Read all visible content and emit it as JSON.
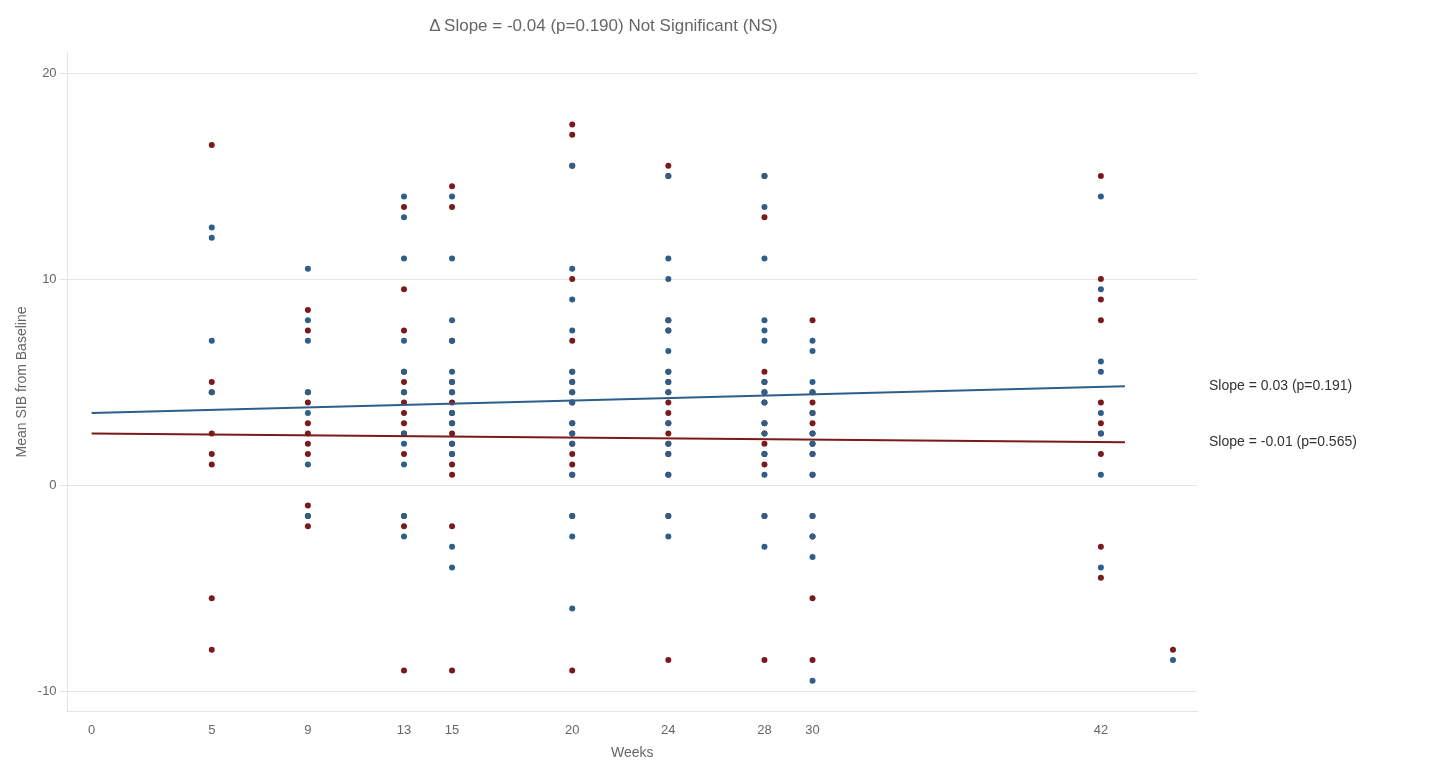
{
  "chart_data": {
    "type": "scatter",
    "title": "Δ Slope = -0.04 (p=0.190) Not Significant (NS)",
    "x_label": "Weeks",
    "y_label": "Mean SIB from Baseline",
    "xlim": [
      -1,
      46
    ],
    "ylim": [
      -11,
      21
    ],
    "xticks": [
      0,
      5,
      9,
      13,
      15,
      20,
      24,
      28,
      30,
      42
    ],
    "yticks": [
      -10,
      0,
      10,
      20
    ],
    "grid": "y",
    "series": [
      {
        "type": "scatter",
        "color": "#2d5f8a",
        "x": [
          5,
          5,
          5,
          5,
          9,
          9,
          9,
          9,
          9,
          9,
          9,
          13,
          13,
          13,
          13,
          13,
          13,
          13,
          13,
          13,
          13,
          13,
          15,
          15,
          15,
          15,
          15,
          15,
          15,
          15,
          15,
          15,
          15,
          15,
          15,
          20,
          20,
          20,
          20,
          20,
          20,
          20,
          20,
          20,
          20,
          20,
          20,
          20,
          20,
          20,
          24,
          24,
          24,
          24,
          24,
          24,
          24,
          24,
          24,
          24,
          24,
          24,
          24,
          24,
          24,
          28,
          28,
          28,
          28,
          28,
          28,
          28,
          28,
          28,
          28,
          28,
          28,
          28,
          28,
          28,
          30,
          30,
          30,
          30,
          30,
          30,
          30,
          30,
          30,
          30,
          30,
          30,
          30,
          42,
          42,
          42,
          42,
          42,
          42,
          42,
          42,
          45
        ],
        "values": [
          4.5,
          7.0,
          12.0,
          12.5,
          10.5,
          8.0,
          7.0,
          4.5,
          3.5,
          1.0,
          -1.5,
          14.0,
          13.0,
          11.0,
          7.0,
          5.5,
          4.5,
          2.5,
          2.0,
          1.0,
          -1.5,
          -2.5,
          14.0,
          11.0,
          8.0,
          7.0,
          5.5,
          5.0,
          4.5,
          3.5,
          3.0,
          2.0,
          1.5,
          -3.0,
          -4.0,
          15.5,
          10.5,
          9.0,
          7.5,
          5.5,
          5.0,
          4.5,
          4.0,
          3.0,
          2.5,
          2.0,
          0.5,
          -1.5,
          -2.5,
          -6.0,
          15.0,
          11.0,
          10.0,
          8.0,
          7.5,
          6.5,
          5.5,
          5.0,
          4.5,
          3.0,
          2.0,
          1.5,
          0.5,
          -1.5,
          -2.5,
          15.0,
          13.5,
          11.0,
          8.0,
          7.5,
          7.0,
          5.0,
          4.5,
          4.0,
          3.0,
          2.5,
          1.5,
          0.5,
          -1.5,
          -3.0,
          7.0,
          6.5,
          5.0,
          4.5,
          3.5,
          2.5,
          2.0,
          1.5,
          0.5,
          -1.5,
          -2.5,
          -3.5,
          -9.5,
          14.0,
          9.5,
          6.0,
          5.5,
          3.5,
          2.5,
          0.5,
          -4.0,
          -8.5
        ]
      },
      {
        "type": "scatter",
        "color": "#7a1a1a",
        "x": [
          5,
          5,
          5,
          5,
          5,
          5,
          5,
          5,
          9,
          9,
          9,
          9,
          9,
          9,
          9,
          9,
          9,
          9,
          9,
          13,
          13,
          13,
          13,
          13,
          13,
          13,
          13,
          13,
          13,
          13,
          13,
          13,
          13,
          15,
          15,
          15,
          15,
          15,
          15,
          15,
          15,
          15,
          15,
          15,
          15,
          15,
          15,
          15,
          20,
          20,
          20,
          20,
          20,
          20,
          20,
          20,
          20,
          20,
          20,
          20,
          20,
          20,
          20,
          20,
          20,
          24,
          24,
          24,
          24,
          24,
          24,
          24,
          24,
          24,
          24,
          24,
          24,
          24,
          24,
          24,
          24,
          28,
          28,
          28,
          28,
          28,
          28,
          28,
          28,
          28,
          28,
          28,
          28,
          28,
          30,
          30,
          30,
          30,
          30,
          30,
          30,
          30,
          30,
          30,
          30,
          30,
          30,
          42,
          42,
          42,
          42,
          42,
          42,
          42,
          42,
          42,
          42,
          45
        ],
        "values": [
          16.5,
          5.0,
          4.5,
          2.5,
          1.5,
          1.0,
          -5.5,
          -8.0,
          8.5,
          7.5,
          4.5,
          4.0,
          3.0,
          2.5,
          2.0,
          1.5,
          -1.0,
          -1.5,
          -2.0,
          13.5,
          9.5,
          7.5,
          5.5,
          5.0,
          4.5,
          4.0,
          3.5,
          3.0,
          2.5,
          1.5,
          -1.5,
          -2.0,
          -9.0,
          14.5,
          13.5,
          7.0,
          5.0,
          4.5,
          4.0,
          3.5,
          3.0,
          2.5,
          2.0,
          1.5,
          1.0,
          0.5,
          -2.0,
          -9.0,
          17.5,
          17.0,
          15.5,
          10.0,
          7.0,
          5.5,
          5.0,
          4.5,
          4.0,
          3.0,
          2.5,
          2.0,
          1.5,
          1.0,
          0.5,
          -1.5,
          -9.0,
          15.5,
          15.0,
          8.0,
          7.5,
          5.5,
          5.0,
          4.5,
          4.0,
          3.5,
          3.0,
          2.5,
          2.0,
          1.5,
          0.5,
          -1.5,
          -8.5,
          15.0,
          13.0,
          5.5,
          5.0,
          4.5,
          4.0,
          3.0,
          2.5,
          2.0,
          1.5,
          1.0,
          -1.5,
          -8.5,
          8.0,
          4.5,
          4.0,
          3.5,
          3.0,
          2.5,
          2.0,
          1.5,
          0.5,
          -1.5,
          -2.5,
          -5.5,
          -8.5,
          15.0,
          10.0,
          9.0,
          8.0,
          4.0,
          3.0,
          2.5,
          1.5,
          -3.0,
          -4.5,
          -8.0
        ]
      },
      {
        "type": "line",
        "color": "#2d5f8a",
        "x": [
          0,
          43
        ],
        "values": [
          3.5,
          4.79
        ]
      },
      {
        "type": "line",
        "color": "#7a1a1a",
        "x": [
          0,
          43
        ],
        "values": [
          2.5,
          2.07
        ]
      }
    ],
    "annotations": [
      {
        "text": "Slope = 0.03 (p=0.191)",
        "x": 43,
        "y": 4.79
      },
      {
        "text": "Slope = -0.01 (p=0.565)",
        "x": 43,
        "y": 2.07
      }
    ]
  }
}
